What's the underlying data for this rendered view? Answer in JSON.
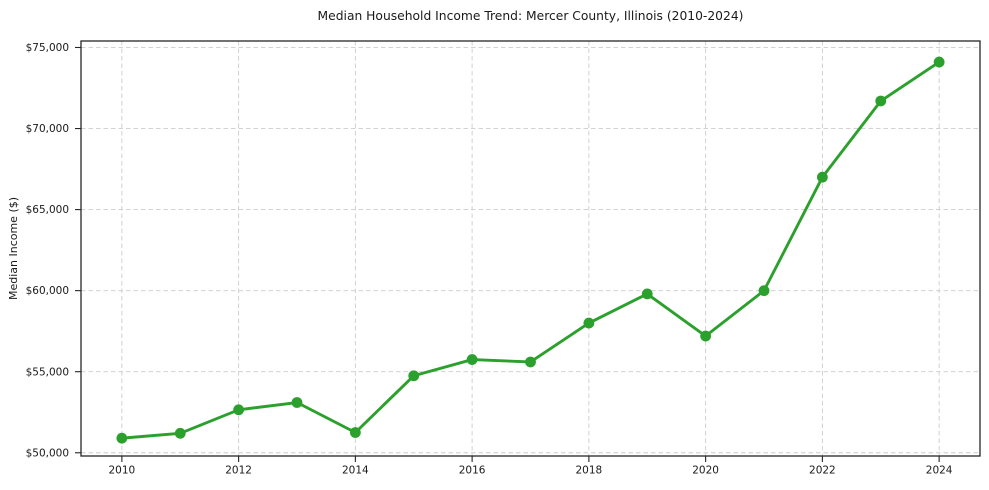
{
  "chart": {
    "title": "Median Household Income Trend: Mercer County, Illinois (2010-2024)",
    "ylabel": "Median Income ($)"
  },
  "chart_data": {
    "type": "line",
    "title": "Median Household Income Trend: Mercer County, Illinois (2010-2024)",
    "xlabel": "",
    "ylabel": "Median Income ($)",
    "x": [
      2010,
      2011,
      2012,
      2013,
      2014,
      2015,
      2016,
      2017,
      2018,
      2019,
      2020,
      2021,
      2022,
      2023,
      2024
    ],
    "values": [
      50900,
      51200,
      52650,
      53100,
      51250,
      54750,
      55750,
      55600,
      58000,
      59800,
      57200,
      60000,
      67000,
      71700,
      74100
    ],
    "xlim": [
      2009.3,
      2024.7
    ],
    "ylim": [
      49800,
      75400
    ],
    "xticks": [
      2010,
      2012,
      2014,
      2016,
      2018,
      2020,
      2022,
      2024
    ],
    "xtick_labels": [
      "2010",
      "2012",
      "2014",
      "2016",
      "2018",
      "2020",
      "2022",
      "2024"
    ],
    "yticks": [
      50000,
      55000,
      60000,
      65000,
      70000,
      75000
    ],
    "ytick_labels": [
      "$50,000",
      "$55,000",
      "$60,000",
      "$65,000",
      "$70,000",
      "$75,000"
    ],
    "grid": true,
    "grid_style": "dashed",
    "legend": "none",
    "marker": "circle",
    "colors": {
      "line": "#2ca02c",
      "marker": "#2ca02c",
      "grid": "#cccccc",
      "frame": "#262626",
      "text": "#1a1a1a",
      "background": "#ffffff"
    }
  }
}
